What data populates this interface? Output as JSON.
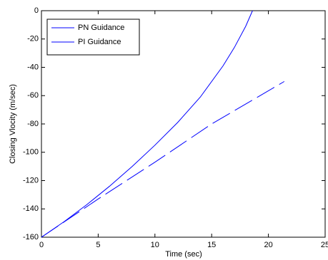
{
  "chart_data": {
    "type": "line",
    "xlabel": "Time (sec)",
    "ylabel": "Closing Vlocity (m/sec)",
    "xlim": [
      0,
      25
    ],
    "xticks": [
      0,
      5,
      10,
      15,
      20,
      25
    ],
    "ylim": [
      -160,
      0
    ],
    "yticks": [
      -160,
      -140,
      -120,
      -100,
      -80,
      -60,
      -40,
      -20,
      0
    ],
    "legend": "upper left",
    "series": [
      {
        "name": "PN Guidance",
        "color": "#0000ff",
        "linestyle": "solid",
        "x": [
          0,
          2,
          4,
          6,
          8,
          10,
          12,
          14,
          16,
          17,
          18,
          18.6
        ],
        "values": [
          -160,
          -149,
          -137,
          -124,
          -110,
          -95,
          -79,
          -61,
          -39,
          -26,
          -11,
          0
        ]
      },
      {
        "name": "PI Guidance",
        "color": "#0000ff",
        "linestyle": "dashed",
        "x": [
          0,
          5,
          10,
          15,
          21.4
        ],
        "values": [
          -160,
          -133,
          -107,
          -80,
          -50
        ]
      }
    ]
  }
}
